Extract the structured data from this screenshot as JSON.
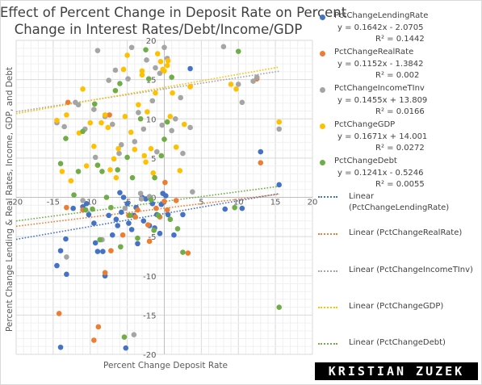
{
  "chart_data": {
    "type": "scatter",
    "title": "Effect of Percent Change in Deposit Rate on Percent Change in Interest Rates/Debt/Income/GDP",
    "title_lines": [
      "Effect of Percent Change in Deposit Rate on Percent",
      "Change in Interest Rates/Debt/Income/GDP"
    ],
    "xlabel": "Percent Change Deposit Rate",
    "ylabel": "Percent Change  Lending & Real Rates, Income, GDP, and Debt",
    "xlim": [
      -20,
      20
    ],
    "ylim": [
      -20,
      20
    ],
    "x_ticks": [
      "-20",
      "-15",
      "-10",
      "-5",
      "0",
      "5",
      "10",
      "15",
      "20"
    ],
    "y_ticks": [
      "20",
      "15",
      "10",
      "5",
      "0",
      "-5",
      "-10",
      "-15",
      "-20"
    ],
    "grid": true,
    "legend_position": "right",
    "series": [
      {
        "name": "PctChangeLendingRate",
        "color": "#4472c4",
        "equation": "y = 0.1642x - 2.0705",
        "r2": "R² = 0.1442",
        "slope": 0.1642,
        "intercept": -2.0705,
        "trend_label": "Linear (PctChangeLendingRate)",
        "points": [
          [
            -14.5,
            -8.7
          ],
          [
            -14,
            -6.8
          ],
          [
            -13.3,
            -5.3
          ],
          [
            -13.2,
            -9.8
          ],
          [
            -12.3,
            -1.4
          ],
          [
            -11,
            -1.2
          ],
          [
            -10.5,
            -0.8
          ],
          [
            -10.2,
            -2.2
          ],
          [
            -9.5,
            -3.3
          ],
          [
            -9.3,
            -5.8
          ],
          [
            -9,
            -6.9
          ],
          [
            -8.3,
            -6.9
          ],
          [
            -8,
            -10
          ],
          [
            -7.5,
            -2.3
          ],
          [
            -7,
            -4.8
          ],
          [
            -6.5,
            -2.8
          ],
          [
            -6.3,
            -3.6
          ],
          [
            -6,
            0.6
          ],
          [
            -5.8,
            -1.9
          ],
          [
            -5.5,
            0
          ],
          [
            -5,
            -0.8
          ],
          [
            -4.8,
            -3.3
          ],
          [
            -4.4,
            -4.1
          ],
          [
            -4.1,
            -2.3
          ],
          [
            -3.8,
            -1.3
          ],
          [
            -3.6,
            -5.9
          ],
          [
            -3,
            0
          ],
          [
            -2.8,
            -3
          ],
          [
            -2.5,
            -0.2
          ],
          [
            -2,
            -3.6
          ],
          [
            -1.6,
            -0.8
          ],
          [
            -1.3,
            -3.9
          ],
          [
            -1,
            -2.2
          ],
          [
            -0.6,
            -4.6
          ],
          [
            -0.4,
            -0.9
          ],
          [
            -0.2,
            0.5
          ],
          [
            0.2,
            0.2
          ],
          [
            0.5,
            -2.2
          ],
          [
            1.3,
            -4.8
          ],
          [
            2.5,
            -2.2
          ],
          [
            8.2,
            -1.5
          ],
          [
            10.5,
            -1.4
          ],
          [
            15.5,
            1.6
          ],
          [
            -14,
            -19.1
          ],
          [
            13,
            5.8
          ],
          [
            3.5,
            16.4
          ],
          [
            -5.2,
            -19.2
          ]
        ]
      },
      {
        "name": "PctChangeRealRate",
        "color": "#ed7d31",
        "equation": "y = 0.1152x - 1.3842",
        "r2": "R² = 0.002",
        "slope": 0.1152,
        "intercept": -1.3842,
        "trend_label": "Linear (PctChangeRealRate)",
        "points": [
          [
            -14.2,
            -14.8
          ],
          [
            -13.2,
            -1.3
          ],
          [
            -11,
            -1.6
          ],
          [
            -9.5,
            -18.2
          ],
          [
            -8.9,
            -16.5
          ],
          [
            -8,
            -9.6
          ],
          [
            -7.2,
            -6.8
          ],
          [
            -5.6,
            -4.8
          ],
          [
            -4.8,
            -2.3
          ],
          [
            -3.9,
            -2.5
          ],
          [
            -3.6,
            -1.6
          ],
          [
            -2.2,
            -3.5
          ],
          [
            -2,
            -5.6
          ],
          [
            -1.1,
            -1.4
          ],
          [
            -0.6,
            -2.5
          ],
          [
            0.1,
            1.9
          ],
          [
            0.4,
            -1.6
          ],
          [
            1.6,
            -0.4
          ],
          [
            3.2,
            -7.1
          ],
          [
            3.5,
            14.1
          ],
          [
            13,
            4.4
          ],
          [
            12.5,
            15.1
          ],
          [
            -13,
            12.1
          ],
          [
            -7.4,
            10.5
          ],
          [
            0,
            -0.5
          ]
        ]
      },
      {
        "name": "PctChangeIncomeTInv",
        "color": "#a5a5a5",
        "equation": "y = 0.1455x + 13.809",
        "r2": "R² = 0.0166",
        "slope": 0.1455,
        "intercept": 13.809,
        "trend_label": "Linear (PctChangeIncomeTInv)",
        "points": [
          [
            -14.5,
            9.5
          ],
          [
            -13.5,
            9
          ],
          [
            -13.2,
            -7.6
          ],
          [
            -12,
            12.1
          ],
          [
            -11.6,
            11.8
          ],
          [
            -11,
            -0.4
          ],
          [
            -10.7,
            8.7
          ],
          [
            -9.5,
            11.2
          ],
          [
            -9.3,
            5.1
          ],
          [
            -9,
            18.7
          ],
          [
            -8.4,
            -5.4
          ],
          [
            -8,
            10.3
          ],
          [
            -7.5,
            14.9
          ],
          [
            -7,
            9.3
          ],
          [
            -6.6,
            16.2
          ],
          [
            -6.1,
            5.6
          ],
          [
            -5.8,
            6.7
          ],
          [
            -5.3,
            -1.4
          ],
          [
            -4.9,
            15.1
          ],
          [
            -4.4,
            19.1
          ],
          [
            -4,
            7.1
          ],
          [
            -3.5,
            10.8
          ],
          [
            -3.1,
            -0.2
          ],
          [
            -2.8,
            8.7
          ],
          [
            -2.4,
            17.5
          ],
          [
            -2,
            0.1
          ],
          [
            -1.6,
            12.3
          ],
          [
            -1,
            5.8
          ],
          [
            -0.6,
            15.8
          ],
          [
            -0.3,
            9.2
          ],
          [
            0,
            19.1
          ],
          [
            0.4,
            17.7
          ],
          [
            1,
            8.5
          ],
          [
            1.5,
            10
          ],
          [
            2.5,
            5.6
          ],
          [
            3.5,
            8.9
          ],
          [
            3.8,
            0.7
          ],
          [
            8,
            19.2
          ],
          [
            10,
            14.4
          ],
          [
            10.5,
            12.1
          ],
          [
            12,
            14.8
          ],
          [
            12.5,
            15.3
          ],
          [
            15.5,
            8.7
          ],
          [
            -3.2,
            0.5
          ],
          [
            -1.2,
            16.5
          ],
          [
            2.2,
            12.7
          ],
          [
            -4.1,
            -17.5
          ]
        ]
      },
      {
        "name": "PctChangeGDP",
        "color": "#ffc000",
        "equation": "y = 0.1671x + 14.001",
        "r2": "R² = 0.0272",
        "slope": 0.1671,
        "intercept": 14.001,
        "trend_label": "Linear (PctChangeGDP)",
        "points": [
          [
            -14.5,
            9.8
          ],
          [
            -13.8,
            3.3
          ],
          [
            -13.2,
            10.5
          ],
          [
            -12.6,
            2.1
          ],
          [
            -11.5,
            8.2
          ],
          [
            -11,
            13.8
          ],
          [
            -10.5,
            4
          ],
          [
            -10,
            9.5
          ],
          [
            -9.5,
            6.5
          ],
          [
            -9,
            4.1
          ],
          [
            -8.5,
            9.5
          ],
          [
            -8,
            10.5
          ],
          [
            -7.6,
            8.9
          ],
          [
            -7.3,
            3.5
          ],
          [
            -6.8,
            4.9
          ],
          [
            -6.5,
            2.5
          ],
          [
            -6.2,
            6.2
          ],
          [
            -5.5,
            16.3
          ],
          [
            -5.3,
            10.3
          ],
          [
            -5,
            18.1
          ],
          [
            -4.5,
            8.3
          ],
          [
            -4,
            6.1
          ],
          [
            -3.5,
            11.8
          ],
          [
            -3,
            16.1
          ],
          [
            -2.7,
            5.3
          ],
          [
            -2.3,
            10.9
          ],
          [
            -1.8,
            6.2
          ],
          [
            -1.2,
            13.3
          ],
          [
            -0.9,
            18.3
          ],
          [
            -0.5,
            17.3
          ],
          [
            -0.2,
            16.3
          ],
          [
            0,
            16.1
          ],
          [
            0.4,
            16.8
          ],
          [
            0.8,
            10.3
          ],
          [
            1.1,
            13.3
          ],
          [
            1.6,
            6.4
          ],
          [
            2.1,
            3.4
          ],
          [
            2.7,
            9.3
          ],
          [
            3.5,
            14.1
          ],
          [
            9,
            14.4
          ],
          [
            9.7,
            13.8
          ],
          [
            15.5,
            9.6
          ],
          [
            -3,
            15.6
          ],
          [
            -1.5,
            3.1
          ],
          [
            0.5,
            17.4
          ],
          [
            -2.5,
            4.5
          ]
        ]
      },
      {
        "name": "PctChangeDebt",
        "color": "#70ad47",
        "equation": "y = 0.1241x - 0.5246",
        "r2": "R² = 0.0055",
        "slope": 0.1241,
        "intercept": -0.5246,
        "trend_label": "Linear (PctChangeDebt)",
        "points": [
          [
            -14,
            4.3
          ],
          [
            -13.3,
            7.5
          ],
          [
            -12.2,
            0.3
          ],
          [
            -11.6,
            3.3
          ],
          [
            -11,
            8.4
          ],
          [
            -10.6,
            -1.6
          ],
          [
            -9.7,
            -1.5
          ],
          [
            -9.4,
            11.9
          ],
          [
            -9,
            4.1
          ],
          [
            -8.7,
            -5.4
          ],
          [
            -8.4,
            3.3
          ],
          [
            -7.8,
            0
          ],
          [
            -7.2,
            -1.3
          ],
          [
            -6.6,
            13.6
          ],
          [
            -6.3,
            3.5
          ],
          [
            -5.9,
            -6.3
          ],
          [
            -5.4,
            -17.8
          ],
          [
            -5,
            5.1
          ],
          [
            -4.6,
            -2.3
          ],
          [
            -4.3,
            2.5
          ],
          [
            -3.6,
            -5.2
          ],
          [
            -3.2,
            10
          ],
          [
            -2.5,
            18.8
          ],
          [
            -2.1,
            15.1
          ],
          [
            -1.8,
            -0.3
          ],
          [
            -1.4,
            -4.2
          ],
          [
            -0.8,
            -2.3
          ],
          [
            -0.4,
            5.3
          ],
          [
            0,
            7.4
          ],
          [
            0.4,
            9.6
          ],
          [
            1,
            15.3
          ],
          [
            1.8,
            -4
          ],
          [
            2.5,
            -7
          ],
          [
            9.5,
            -1.3
          ],
          [
            10,
            18.6
          ],
          [
            15.5,
            -14
          ],
          [
            -6,
            14.5
          ],
          [
            -1.3,
            2.5
          ],
          [
            0.8,
            -2.8
          ]
        ]
      }
    ]
  },
  "watermark": "KRISTIAN ZUZEK"
}
